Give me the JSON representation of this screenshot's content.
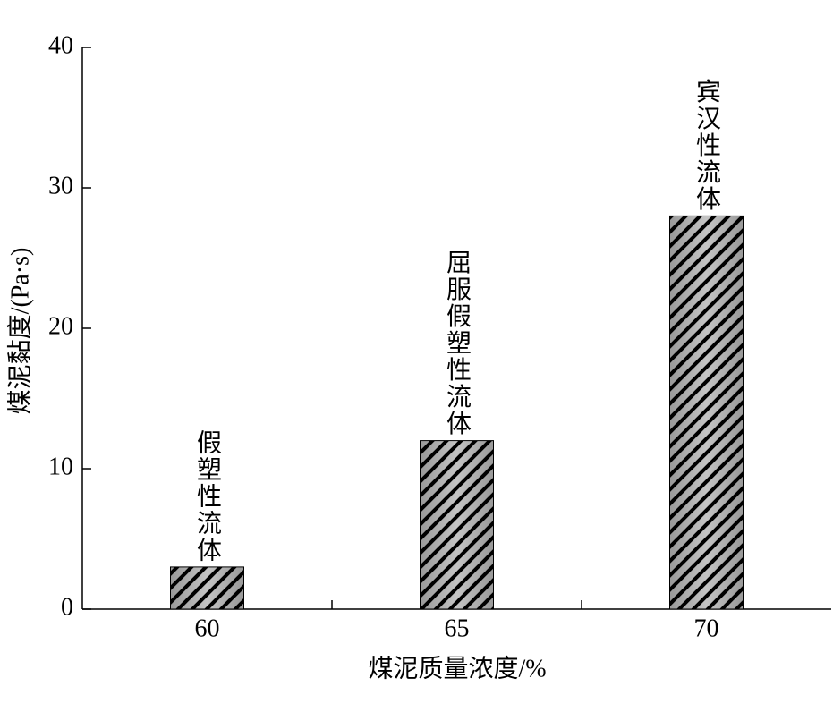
{
  "chart_data": {
    "type": "bar",
    "x_label": "煤泥质量浓度/%",
    "y_label": "煤泥黏度/(Pa·s)",
    "categories": [
      "60",
      "65",
      "70"
    ],
    "values": [
      3,
      12,
      28
    ],
    "annotations": [
      "假塑性流体",
      "屈服假塑性流体",
      "宾汉性流体"
    ],
    "color": "#c4c4c4",
    "hatch_color": "#000000",
    "ylim": [
      0,
      40
    ],
    "yticks": [
      0,
      10,
      20,
      30,
      40
    ],
    "grid": false
  }
}
